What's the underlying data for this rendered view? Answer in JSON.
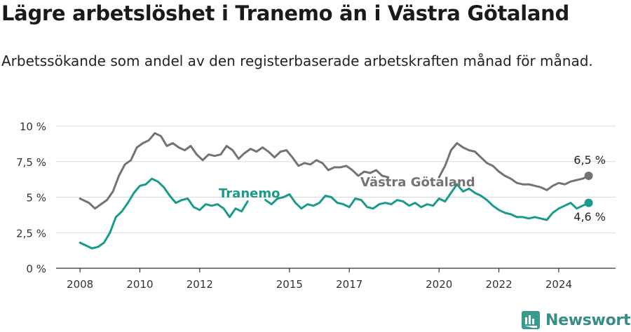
{
  "title": "Lägre arbetslöshet i Tranemo än i Västra Götaland",
  "subtitle": "Arbetssökande som andel av den registerbaserade arbetskraften månad för månad.",
  "brand": {
    "name": "Newsworthy",
    "icon": "newsworthy-logo-icon"
  },
  "colors": {
    "tranemo": "#1a9a8a",
    "vastra": "#737373",
    "grid": "#d9d9d9"
  },
  "chart_data": {
    "type": "line",
    "y_ticks": [
      {
        "value": 0,
        "label": "0 %"
      },
      {
        "value": 2.5,
        "label": "2,5 %"
      },
      {
        "value": 5,
        "label": "5 %"
      },
      {
        "value": 7.5,
        "label": "7,5 %"
      },
      {
        "value": 10,
        "label": "10 %"
      }
    ],
    "x_ticks": [
      "2008",
      "2010",
      "2012",
      "2015",
      "2017",
      "2020",
      "2022",
      "2024"
    ],
    "ylim": [
      0,
      10
    ],
    "xlim": [
      2007.2,
      2025.9
    ],
    "grid": true,
    "series": [
      {
        "name": "Västra Götaland",
        "label_text": "Västra Götaland",
        "end_label": "6,5 %",
        "points": [
          [
            2008.0,
            4.9
          ],
          [
            2008.3,
            4.6
          ],
          [
            2008.5,
            4.2
          ],
          [
            2008.7,
            4.5
          ],
          [
            2008.9,
            4.8
          ],
          [
            2009.1,
            5.4
          ],
          [
            2009.3,
            6.5
          ],
          [
            2009.5,
            7.3
          ],
          [
            2009.7,
            7.6
          ],
          [
            2009.9,
            8.5
          ],
          [
            2010.1,
            8.8
          ],
          [
            2010.3,
            9.0
          ],
          [
            2010.5,
            9.5
          ],
          [
            2010.7,
            9.3
          ],
          [
            2010.9,
            8.6
          ],
          [
            2011.1,
            8.8
          ],
          [
            2011.3,
            8.5
          ],
          [
            2011.5,
            8.3
          ],
          [
            2011.7,
            8.6
          ],
          [
            2011.9,
            8.0
          ],
          [
            2012.1,
            7.6
          ],
          [
            2012.3,
            8.0
          ],
          [
            2012.5,
            7.9
          ],
          [
            2012.7,
            8.0
          ],
          [
            2012.9,
            8.6
          ],
          [
            2013.1,
            8.3
          ],
          [
            2013.3,
            7.7
          ],
          [
            2013.5,
            8.1
          ],
          [
            2013.7,
            8.4
          ],
          [
            2013.9,
            8.2
          ],
          [
            2014.1,
            8.5
          ],
          [
            2014.3,
            8.2
          ],
          [
            2014.5,
            7.8
          ],
          [
            2014.7,
            8.2
          ],
          [
            2014.9,
            8.3
          ],
          [
            2015.1,
            7.8
          ],
          [
            2015.3,
            7.2
          ],
          [
            2015.5,
            7.4
          ],
          [
            2015.7,
            7.3
          ],
          [
            2015.9,
            7.6
          ],
          [
            2016.1,
            7.4
          ],
          [
            2016.3,
            6.9
          ],
          [
            2016.5,
            7.1
          ],
          [
            2016.7,
            7.1
          ],
          [
            2016.9,
            7.2
          ],
          [
            2017.1,
            6.9
          ],
          [
            2017.3,
            6.5
          ],
          [
            2017.5,
            6.8
          ],
          [
            2017.7,
            6.7
          ],
          [
            2017.9,
            6.9
          ],
          [
            2018.1,
            6.5
          ],
          [
            2018.3,
            6.4
          ],
          [
            2020.0,
            6.4
          ],
          [
            2020.2,
            7.2
          ],
          [
            2020.4,
            8.3
          ],
          [
            2020.6,
            8.8
          ],
          [
            2020.8,
            8.5
          ],
          [
            2021.0,
            8.3
          ],
          [
            2021.2,
            8.2
          ],
          [
            2021.4,
            7.8
          ],
          [
            2021.6,
            7.4
          ],
          [
            2021.8,
            7.2
          ],
          [
            2022.0,
            6.8
          ],
          [
            2022.2,
            6.5
          ],
          [
            2022.4,
            6.3
          ],
          [
            2022.6,
            6.0
          ],
          [
            2022.8,
            5.9
          ],
          [
            2023.0,
            5.9
          ],
          [
            2023.2,
            5.8
          ],
          [
            2023.4,
            5.7
          ],
          [
            2023.6,
            5.5
          ],
          [
            2023.8,
            5.8
          ],
          [
            2024.0,
            6.0
          ],
          [
            2024.2,
            5.9
          ],
          [
            2024.4,
            6.1
          ],
          [
            2024.6,
            6.2
          ],
          [
            2024.8,
            6.3
          ],
          [
            2025.0,
            6.5
          ]
        ]
      },
      {
        "name": "Tranemo",
        "label_text": "Tranemo",
        "end_label": "4,6 %",
        "points": [
          [
            2008.0,
            1.8
          ],
          [
            2008.2,
            1.6
          ],
          [
            2008.4,
            1.4
          ],
          [
            2008.6,
            1.5
          ],
          [
            2008.8,
            1.8
          ],
          [
            2009.0,
            2.5
          ],
          [
            2009.2,
            3.6
          ],
          [
            2009.4,
            4.0
          ],
          [
            2009.6,
            4.6
          ],
          [
            2009.8,
            5.3
          ],
          [
            2010.0,
            5.8
          ],
          [
            2010.2,
            5.9
          ],
          [
            2010.4,
            6.3
          ],
          [
            2010.6,
            6.1
          ],
          [
            2010.8,
            5.7
          ],
          [
            2011.0,
            5.1
          ],
          [
            2011.2,
            4.6
          ],
          [
            2011.4,
            4.8
          ],
          [
            2011.6,
            4.9
          ],
          [
            2011.8,
            4.3
          ],
          [
            2012.0,
            4.1
          ],
          [
            2012.2,
            4.5
          ],
          [
            2012.4,
            4.4
          ],
          [
            2012.6,
            4.5
          ],
          [
            2012.8,
            4.2
          ],
          [
            2013.0,
            3.6
          ],
          [
            2013.2,
            4.2
          ],
          [
            2013.4,
            4.0
          ],
          [
            2013.6,
            4.7
          ],
          [
            2014.2,
            4.8
          ],
          [
            2014.4,
            4.5
          ],
          [
            2014.6,
            4.9
          ],
          [
            2014.8,
            5.0
          ],
          [
            2015.0,
            5.2
          ],
          [
            2015.2,
            4.6
          ],
          [
            2015.4,
            4.2
          ],
          [
            2015.6,
            4.5
          ],
          [
            2015.8,
            4.4
          ],
          [
            2016.0,
            4.6
          ],
          [
            2016.2,
            5.1
          ],
          [
            2016.4,
            5.0
          ],
          [
            2016.6,
            4.6
          ],
          [
            2016.8,
            4.5
          ],
          [
            2017.0,
            4.3
          ],
          [
            2017.2,
            4.9
          ],
          [
            2017.4,
            4.8
          ],
          [
            2017.6,
            4.3
          ],
          [
            2017.8,
            4.2
          ],
          [
            2018.0,
            4.5
          ],
          [
            2018.2,
            4.6
          ],
          [
            2018.4,
            4.5
          ],
          [
            2018.6,
            4.8
          ],
          [
            2018.8,
            4.7
          ],
          [
            2019.0,
            4.4
          ],
          [
            2019.2,
            4.6
          ],
          [
            2019.4,
            4.3
          ],
          [
            2019.6,
            4.5
          ],
          [
            2019.8,
            4.4
          ],
          [
            2020.0,
            4.9
          ],
          [
            2020.2,
            4.7
          ],
          [
            2020.4,
            5.3
          ],
          [
            2020.6,
            5.9
          ],
          [
            2020.8,
            5.4
          ],
          [
            2021.0,
            5.6
          ],
          [
            2021.2,
            5.3
          ],
          [
            2021.4,
            5.1
          ],
          [
            2021.6,
            4.8
          ],
          [
            2021.8,
            4.4
          ],
          [
            2022.0,
            4.1
          ],
          [
            2022.2,
            3.9
          ],
          [
            2022.4,
            3.8
          ],
          [
            2022.6,
            3.6
          ],
          [
            2022.8,
            3.6
          ],
          [
            2023.0,
            3.5
          ],
          [
            2023.2,
            3.6
          ],
          [
            2023.4,
            3.5
          ],
          [
            2023.6,
            3.4
          ],
          [
            2023.8,
            3.9
          ],
          [
            2024.0,
            4.2
          ],
          [
            2024.2,
            4.4
          ],
          [
            2024.4,
            4.6
          ],
          [
            2024.6,
            4.2
          ],
          [
            2024.8,
            4.4
          ],
          [
            2025.0,
            4.6
          ]
        ]
      }
    ]
  }
}
